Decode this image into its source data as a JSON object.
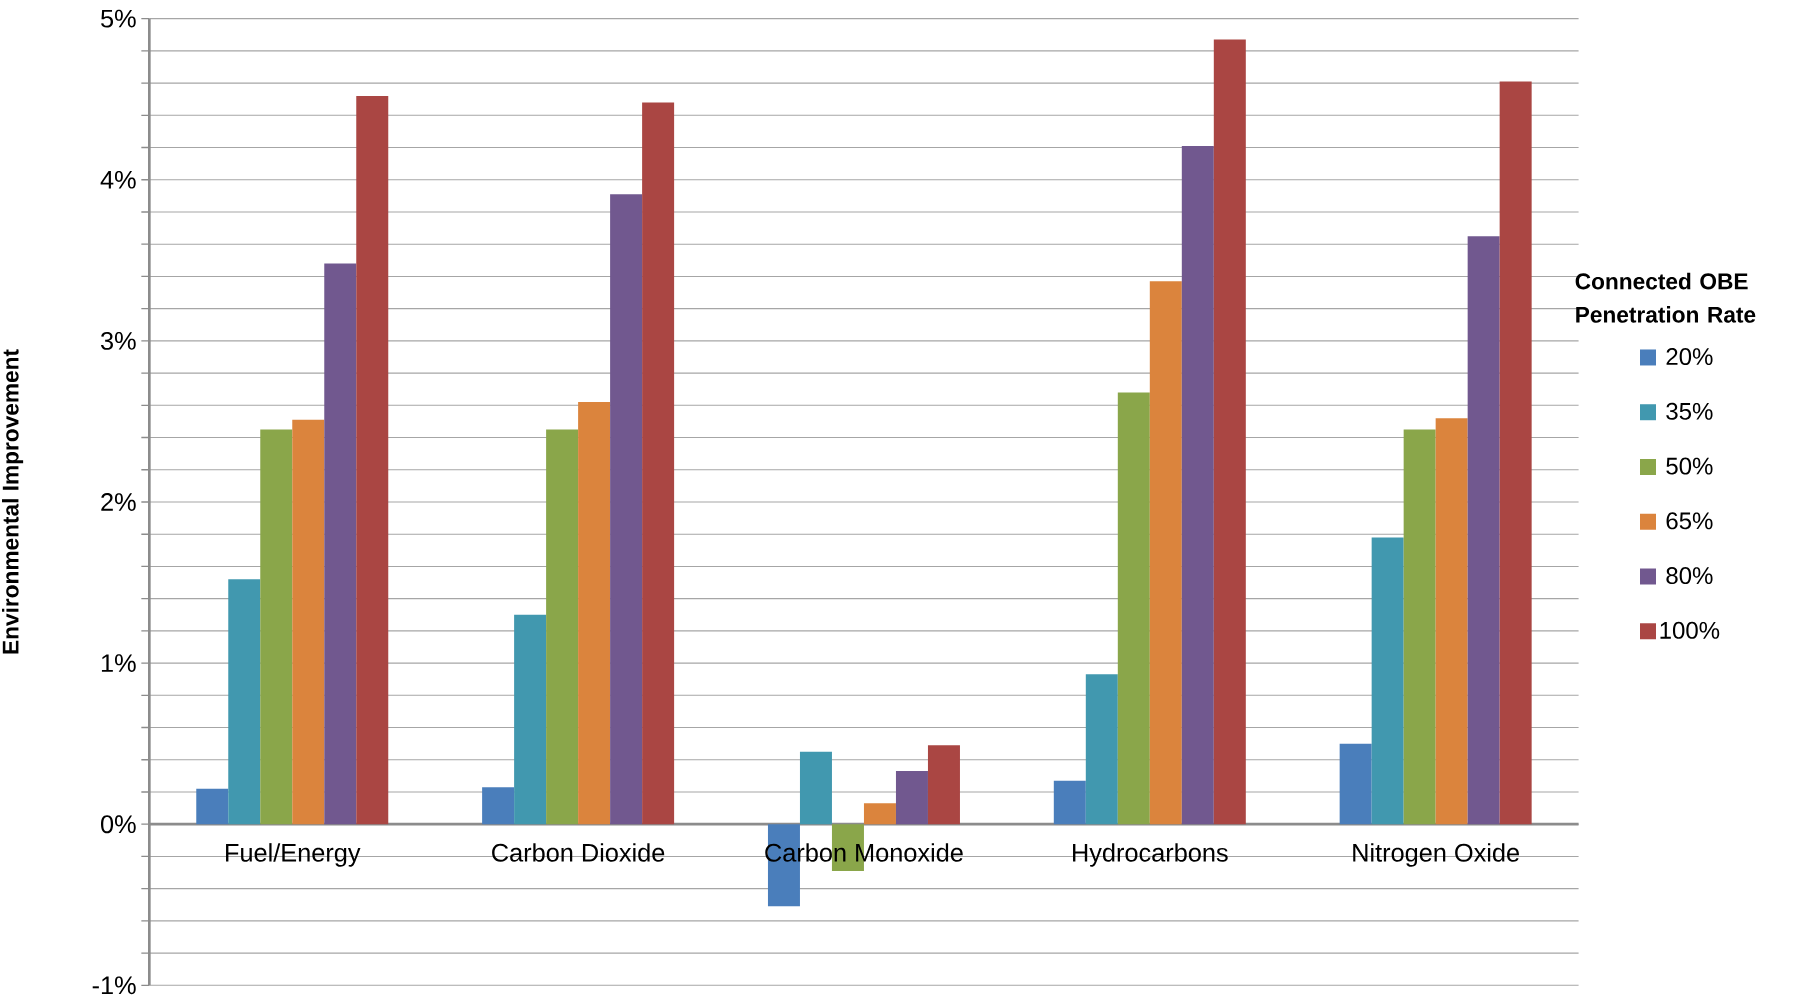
{
  "chart_data": {
    "type": "bar",
    "ylabel": "Environmental Improvement",
    "legend_title": "Connected OBE Penetration Rate",
    "categories": [
      "Fuel/Energy",
      "Carbon Dioxide",
      "Carbon Monoxide",
      "Hydrocarbons",
      "Nitrogen Oxide"
    ],
    "series": [
      {
        "name": "20%",
        "color": "#4a7ebb",
        "values": [
          0.22,
          0.23,
          -0.51,
          0.27,
          0.5
        ]
      },
      {
        "name": "35%",
        "color": "#4198af",
        "values": [
          1.52,
          1.3,
          0.45,
          0.93,
          1.78
        ]
      },
      {
        "name": "50%",
        "color": "#8aa64a",
        "values": [
          2.45,
          2.45,
          -0.29,
          2.68,
          2.45
        ]
      },
      {
        "name": "65%",
        "color": "#db843d",
        "values": [
          2.51,
          2.62,
          0.13,
          3.37,
          2.52
        ]
      },
      {
        "name": "80%",
        "color": "#71588f",
        "values": [
          3.48,
          3.91,
          0.33,
          4.21,
          3.65
        ]
      },
      {
        "name": "100%",
        "color": "#aa4643",
        "values": [
          4.52,
          4.48,
          0.49,
          4.87,
          4.61
        ]
      }
    ],
    "ylim": [
      -1,
      5
    ],
    "yticks": [
      {
        "value": -1,
        "label": "-1%"
      },
      {
        "value": -0.8,
        "label": null
      },
      {
        "value": -0.6,
        "label": null
      },
      {
        "value": -0.4,
        "label": null
      },
      {
        "value": -0.2,
        "label": null
      },
      {
        "value": 0,
        "label": "0%"
      },
      {
        "value": 0.2,
        "label": null
      },
      {
        "value": 0.4,
        "label": null
      },
      {
        "value": 0.6,
        "label": null
      },
      {
        "value": 0.8,
        "label": null
      },
      {
        "value": 1,
        "label": "1%"
      },
      {
        "value": 1.2,
        "label": null
      },
      {
        "value": 1.4,
        "label": null
      },
      {
        "value": 1.6,
        "label": null
      },
      {
        "value": 1.8,
        "label": null
      },
      {
        "value": 2,
        "label": "2%"
      },
      {
        "value": 2.2,
        "label": null
      },
      {
        "value": 2.4,
        "label": null
      },
      {
        "value": 2.6,
        "label": null
      },
      {
        "value": 2.8,
        "label": null
      },
      {
        "value": 3,
        "label": "3%"
      },
      {
        "value": 3.2,
        "label": null
      },
      {
        "value": 3.4,
        "label": null
      },
      {
        "value": 3.6,
        "label": null
      },
      {
        "value": 3.8,
        "label": null
      },
      {
        "value": 4,
        "label": "4%"
      },
      {
        "value": 4.2,
        "label": null
      },
      {
        "value": 4.4,
        "label": null
      },
      {
        "value": 4.6,
        "label": null
      },
      {
        "value": 4.8,
        "label": null
      },
      {
        "value": 5,
        "label": "5%"
      }
    ],
    "grid": "y",
    "legend": "right"
  }
}
